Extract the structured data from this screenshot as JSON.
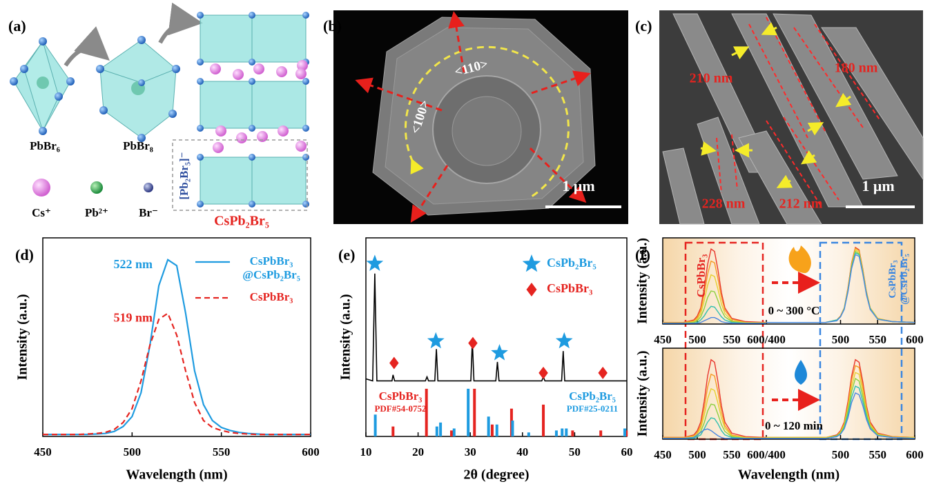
{
  "panel_a": {
    "label": "(a)",
    "units": [
      "PbBr₆",
      "PbBr₈"
    ],
    "legend": [
      "Cs⁺",
      "Pb²⁺",
      "Br⁻"
    ],
    "layer": "[Pb₂Br₅]⁻",
    "product": "CsPb₂Br₅"
  },
  "panel_b": {
    "label": "(b)",
    "directions": [
      "<110>",
      "<100>"
    ],
    "scale_bar": "1 μm"
  },
  "panel_c": {
    "label": "(c)",
    "widths": [
      "210 nm",
      "180 nm",
      "228 nm",
      "212 nm"
    ],
    "scale_bar": "1 μm"
  },
  "chart_data": [
    {
      "type": "line",
      "label": "(d)",
      "xlabel": "Wavelength (nm)",
      "ylabel": "Intensity (a.u.)",
      "xlim": [
        450,
        600
      ],
      "xticks": [
        450,
        500,
        550,
        600
      ],
      "ylim": [
        0,
        1
      ],
      "x": [
        450,
        455,
        460,
        465,
        470,
        475,
        480,
        485,
        490,
        495,
        500,
        505,
        510,
        515,
        520,
        525,
        530,
        535,
        540,
        545,
        550,
        555,
        560,
        565,
        570,
        575,
        580,
        585,
        590,
        595,
        600
      ],
      "series": [
        {
          "name": "CsPbBr₃@CsPb₂Br₅",
          "color": "#1e9be0",
          "linestyle": "solid",
          "peak_label": "522 nm",
          "values": [
            0.01,
            0.01,
            0.01,
            0.01,
            0.01,
            0.01,
            0.012,
            0.015,
            0.025,
            0.05,
            0.1,
            0.22,
            0.46,
            0.76,
            0.89,
            0.86,
            0.62,
            0.33,
            0.16,
            0.08,
            0.045,
            0.03,
            0.02,
            0.015,
            0.012,
            0.01,
            0.01,
            0.01,
            0.01,
            0.01,
            0.01
          ]
        },
        {
          "name": "CsPbBr₃",
          "color": "#e52420",
          "linestyle": "dashed",
          "peak_label": "519 nm",
          "values": [
            0.01,
            0.01,
            0.01,
            0.01,
            0.01,
            0.012,
            0.015,
            0.02,
            0.035,
            0.07,
            0.14,
            0.28,
            0.46,
            0.59,
            0.62,
            0.51,
            0.33,
            0.17,
            0.08,
            0.045,
            0.03,
            0.02,
            0.015,
            0.012,
            0.01,
            0.01,
            0.01,
            0.01,
            0.01,
            0.01,
            0.01
          ]
        }
      ]
    },
    {
      "type": "xrd",
      "label": "(e)",
      "xlabel": "2θ (degree)",
      "ylabel": "Intensity (a.u.)",
      "xlim": [
        10,
        60
      ],
      "xticks": [
        10,
        20,
        30,
        40,
        50,
        60
      ],
      "ylim": [
        0,
        1
      ],
      "trace": {
        "color": "#000000",
        "x": [
          10,
          11.3,
          11.7,
          12.1,
          15,
          15.2,
          15.5,
          21.4,
          21.7,
          22,
          23.2,
          23.5,
          23.8,
          30.1,
          30.4,
          30.7,
          34.9,
          35.2,
          35.5,
          43.7,
          44,
          44.3,
          47.5,
          47.8,
          48.1,
          60
        ],
        "values": [
          0.29,
          0.28,
          0.82,
          0.28,
          0.28,
          0.31,
          0.28,
          0.28,
          0.3,
          0.28,
          0.28,
          0.44,
          0.28,
          0.28,
          0.48,
          0.28,
          0.28,
          0.375,
          0.28,
          0.28,
          0.3,
          0.28,
          0.28,
          0.43,
          0.28,
          0.28
        ]
      },
      "series": [
        {
          "name": "CsPb₂Br₅",
          "marker": "star",
          "color": "#1e9be0",
          "x": [
            11.7,
            23.4,
            35.6,
            48
          ],
          "values": [
            0.87,
            0.48,
            0.42,
            0.48
          ]
        },
        {
          "name": "CsPbBr₃",
          "marker": "diamond",
          "color": "#e52420",
          "x": [
            15.4,
            30.5,
            44,
            55.4
          ],
          "values": [
            0.37,
            0.47,
            0.32,
            0.32
          ]
        }
      ],
      "references": [
        {
          "name": "CsPbBr₃",
          "card": "PDF#54-0752",
          "color": "#e52420",
          "x": [
            15.2,
            21.6,
            26.4,
            30.8,
            34.2,
            37.9,
            44,
            49.6,
            55,
            59.9
          ],
          "values": [
            0.05,
            0.24,
            0.03,
            0.24,
            0.06,
            0.14,
            0.16,
            0.03,
            0.03,
            0.03
          ]
        },
        {
          "name": "CsPb₂Br₅",
          "card": "PDF#25-0211",
          "color": "#1e9be0",
          "x": [
            11.8,
            23.6,
            24.3,
            26.9,
            29.6,
            33.5,
            35.1,
            38.1,
            41.2,
            46.5,
            47.6,
            48.4,
            59.6
          ],
          "values": [
            0.11,
            0.05,
            0.07,
            0.04,
            0.24,
            0.1,
            0.06,
            0.08,
            0.02,
            0.03,
            0.04,
            0.04,
            0.04
          ]
        }
      ]
    },
    {
      "type": "split",
      "label": "(f)",
      "ylabel": "Intensity (a.u.)",
      "condition": "0 ~ 300 °C",
      "left_box_label": "CsPbBr₃",
      "right_box_label": "CsPbBr₃@CsPb₂Br₅",
      "ylim": [
        0,
        1
      ],
      "halves": [
        {
          "xlim": [
            450,
            600
          ],
          "xticks": [
            450,
            500,
            550,
            {
              "value": 600,
              "label": "600/400"
            }
          ],
          "x": [
            450,
            480,
            495,
            500,
            505,
            510,
            515,
            520,
            525,
            530,
            535,
            540,
            550,
            570,
            600
          ],
          "series": [
            {
              "color": "#e8332a",
              "values": [
                0.02,
                0.02,
                0.05,
                0.1,
                0.2,
                0.44,
                0.74,
                0.93,
                0.9,
                0.67,
                0.39,
                0.2,
                0.07,
                0.03,
                0.02
              ]
            },
            {
              "color": "#f59a23",
              "values": [
                0.02,
                0.02,
                0.04,
                0.08,
                0.17,
                0.37,
                0.62,
                0.78,
                0.76,
                0.56,
                0.33,
                0.17,
                0.06,
                0.02,
                0.02
              ]
            },
            {
              "color": "#e6cf2e",
              "values": [
                0.01,
                0.01,
                0.03,
                0.06,
                0.13,
                0.29,
                0.48,
                0.61,
                0.59,
                0.43,
                0.25,
                0.13,
                0.04,
                0.02,
                0.01
              ]
            },
            {
              "color": "#8ccf3e",
              "values": [
                0.01,
                0.01,
                0.02,
                0.04,
                0.09,
                0.19,
                0.33,
                0.41,
                0.4,
                0.29,
                0.17,
                0.09,
                0.03,
                0.01,
                0.01
              ]
            },
            {
              "color": "#2fbfae",
              "values": [
                0.01,
                0.01,
                0.01,
                0.02,
                0.05,
                0.1,
                0.17,
                0.22,
                0.21,
                0.15,
                0.09,
                0.05,
                0.02,
                0.01,
                0.01
              ]
            },
            {
              "color": "#4a86e0",
              "values": [
                0.01,
                0.01,
                0.01,
                0.01,
                0.02,
                0.04,
                0.06,
                0.08,
                0.08,
                0.06,
                0.03,
                0.02,
                0.01,
                0.01,
                0.01
              ]
            }
          ]
        },
        {
          "xlim": [
            400,
            600
          ],
          "xticks": [
            500,
            550,
            600
          ],
          "x": [
            400,
            450,
            480,
            495,
            500,
            505,
            510,
            515,
            520,
            525,
            530,
            535,
            540,
            550,
            570,
            600
          ],
          "series": [
            {
              "color": "#e8332a",
              "values": [
                0.02,
                0.02,
                0.02,
                0.05,
                0.1,
                0.2,
                0.45,
                0.76,
                0.95,
                0.92,
                0.68,
                0.4,
                0.2,
                0.07,
                0.03,
                0.02
              ]
            },
            {
              "color": "#f59a23",
              "values": [
                0.02,
                0.02,
                0.02,
                0.05,
                0.1,
                0.2,
                0.44,
                0.75,
                0.94,
                0.91,
                0.67,
                0.39,
                0.2,
                0.07,
                0.03,
                0.02
              ]
            },
            {
              "color": "#e6cf2e",
              "values": [
                0.02,
                0.02,
                0.02,
                0.05,
                0.09,
                0.2,
                0.43,
                0.73,
                0.92,
                0.89,
                0.66,
                0.39,
                0.2,
                0.07,
                0.03,
                0.02
              ]
            },
            {
              "color": "#8ccf3e",
              "values": [
                0.02,
                0.02,
                0.02,
                0.05,
                0.09,
                0.19,
                0.42,
                0.72,
                0.9,
                0.87,
                0.64,
                0.38,
                0.19,
                0.06,
                0.03,
                0.02
              ]
            },
            {
              "color": "#2fbfae",
              "values": [
                0.02,
                0.02,
                0.02,
                0.05,
                0.09,
                0.19,
                0.41,
                0.7,
                0.88,
                0.86,
                0.63,
                0.37,
                0.19,
                0.06,
                0.03,
                0.02
              ]
            },
            {
              "color": "#4a86e0",
              "values": [
                0.02,
                0.02,
                0.02,
                0.04,
                0.09,
                0.18,
                0.4,
                0.69,
                0.86,
                0.84,
                0.62,
                0.36,
                0.18,
                0.06,
                0.03,
                0.02
              ]
            }
          ]
        }
      ]
    },
    {
      "type": "split",
      "ylabel": "Intensity (a.u.)",
      "xlabel": "Wavelength (nm)",
      "condition": "0 ~ 120 min",
      "ylim": [
        0,
        1
      ],
      "halves": [
        {
          "xlim": [
            450,
            600
          ],
          "xticks": [
            450,
            500,
            550,
            {
              "value": 600,
              "label": "600/400"
            }
          ],
          "x": [
            450,
            480,
            495,
            500,
            505,
            510,
            515,
            520,
            525,
            530,
            535,
            540,
            550,
            570,
            600
          ],
          "series": [
            {
              "color": "#e8332a",
              "values": [
                0.02,
                0.02,
                0.05,
                0.1,
                0.2,
                0.44,
                0.74,
                0.93,
                0.9,
                0.67,
                0.39,
                0.2,
                0.07,
                0.03,
                0.02
              ]
            },
            {
              "color": "#f59a23",
              "values": [
                0.02,
                0.02,
                0.04,
                0.08,
                0.16,
                0.36,
                0.61,
                0.76,
                0.74,
                0.55,
                0.32,
                0.16,
                0.05,
                0.02,
                0.02
              ]
            },
            {
              "color": "#e6cf2e",
              "values": [
                0.01,
                0.01,
                0.03,
                0.06,
                0.13,
                0.28,
                0.47,
                0.59,
                0.57,
                0.42,
                0.25,
                0.13,
                0.04,
                0.02,
                0.01
              ]
            },
            {
              "color": "#8ccf3e",
              "values": [
                0.01,
                0.01,
                0.02,
                0.04,
                0.09,
                0.19,
                0.33,
                0.41,
                0.4,
                0.29,
                0.17,
                0.09,
                0.03,
                0.01,
                0.01
              ]
            },
            {
              "color": "#2fbfae",
              "values": [
                0.01,
                0.01,
                0.01,
                0.03,
                0.05,
                0.12,
                0.2,
                0.25,
                0.24,
                0.18,
                0.1,
                0.05,
                0.02,
                0.01,
                0.01
              ]
            },
            {
              "color": "#4a86e0",
              "values": [
                0.01,
                0.01,
                0.02,
                0.05,
                0.08,
                0.11,
                0.12,
                0.1,
                0.07,
                0.04,
                0.02,
                0.01,
                0.01,
                0.01,
                0.01
              ]
            }
          ]
        },
        {
          "xlim": [
            400,
            600
          ],
          "xticks": [
            500,
            550,
            600
          ],
          "x": [
            400,
            450,
            480,
            495,
            500,
            505,
            510,
            515,
            520,
            525,
            530,
            535,
            540,
            550,
            570,
            600
          ],
          "series": [
            {
              "color": "#e8332a",
              "values": [
                0.02,
                0.02,
                0.02,
                0.05,
                0.1,
                0.2,
                0.44,
                0.74,
                0.93,
                0.9,
                0.67,
                0.39,
                0.2,
                0.07,
                0.03,
                0.02
              ]
            },
            {
              "color": "#f59a23",
              "values": [
                0.02,
                0.02,
                0.02,
                0.04,
                0.09,
                0.18,
                0.4,
                0.69,
                0.86,
                0.84,
                0.62,
                0.36,
                0.18,
                0.06,
                0.03,
                0.02
              ]
            },
            {
              "color": "#e6cf2e",
              "values": [
                0.02,
                0.02,
                0.02,
                0.04,
                0.08,
                0.17,
                0.37,
                0.62,
                0.78,
                0.76,
                0.56,
                0.33,
                0.17,
                0.06,
                0.02,
                0.02
              ]
            },
            {
              "color": "#8ccf3e",
              "values": [
                0.01,
                0.01,
                0.01,
                0.04,
                0.07,
                0.15,
                0.33,
                0.56,
                0.71,
                0.68,
                0.5,
                0.3,
                0.15,
                0.05,
                0.02,
                0.01
              ]
            },
            {
              "color": "#2fbfae",
              "values": [
                0.01,
                0.01,
                0.01,
                0.03,
                0.06,
                0.13,
                0.29,
                0.49,
                0.62,
                0.6,
                0.44,
                0.26,
                0.13,
                0.04,
                0.02,
                0.01
              ]
            },
            {
              "color": "#4a86e0",
              "values": [
                0.01,
                0.01,
                0.01,
                0.03,
                0.06,
                0.12,
                0.25,
                0.43,
                0.54,
                0.52,
                0.39,
                0.23,
                0.12,
                0.04,
                0.02,
                0.01
              ]
            }
          ]
        }
      ]
    }
  ]
}
